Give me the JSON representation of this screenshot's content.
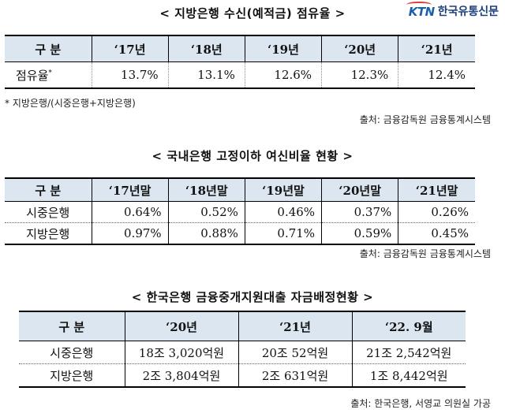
{
  "logo": {
    "mark": "KTN",
    "name": "한국유통신문"
  },
  "table1": {
    "title": "< 지방은행 수신(예적금) 점유율 >",
    "headers": [
      "구 분",
      "‘17년",
      "‘18년",
      "‘19년",
      "‘20년",
      "‘21년"
    ],
    "row": {
      "label": "점유율",
      "mark": "*",
      "values": [
        "13.7%",
        "13.1%",
        "12.6%",
        "12.3%",
        "12.4%"
      ]
    },
    "note": "* 지방은행/(시중은행+지방은행)",
    "source": "출처: 금융감독원 금융통계시스템"
  },
  "table2": {
    "title": "< 국내은행 고정이하 여신비율 현황 >",
    "headers": [
      "구 분",
      "‘17년말",
      "‘18년말",
      "‘19년말",
      "‘20년말",
      "‘21년말"
    ],
    "rows": [
      {
        "label": "시중은행",
        "values": [
          "0.64%",
          "0.52%",
          "0.46%",
          "0.37%",
          "0.26%"
        ]
      },
      {
        "label": "지방은행",
        "values": [
          "0.97%",
          "0.88%",
          "0.71%",
          "0.59%",
          "0.45%"
        ]
      }
    ],
    "source": "출처: 금융감독원 금융통계시스템"
  },
  "table3": {
    "title": "< 한국은행 금융중개지원대출 자금배정현황 >",
    "headers": [
      "구 분",
      "‘20년",
      "‘21년",
      "‘22. 9월"
    ],
    "rows": [
      {
        "label": "시중은행",
        "values": [
          "18조 3,020억원",
          "20조 52억원",
          "21조 2,542억원"
        ]
      },
      {
        "label": "지방은행",
        "values": [
          "2조 3,804억원",
          "2조 631억원",
          "1조 8,442억원"
        ]
      }
    ],
    "source": "출처: 한국은행, 서영교 의원실 가공"
  }
}
